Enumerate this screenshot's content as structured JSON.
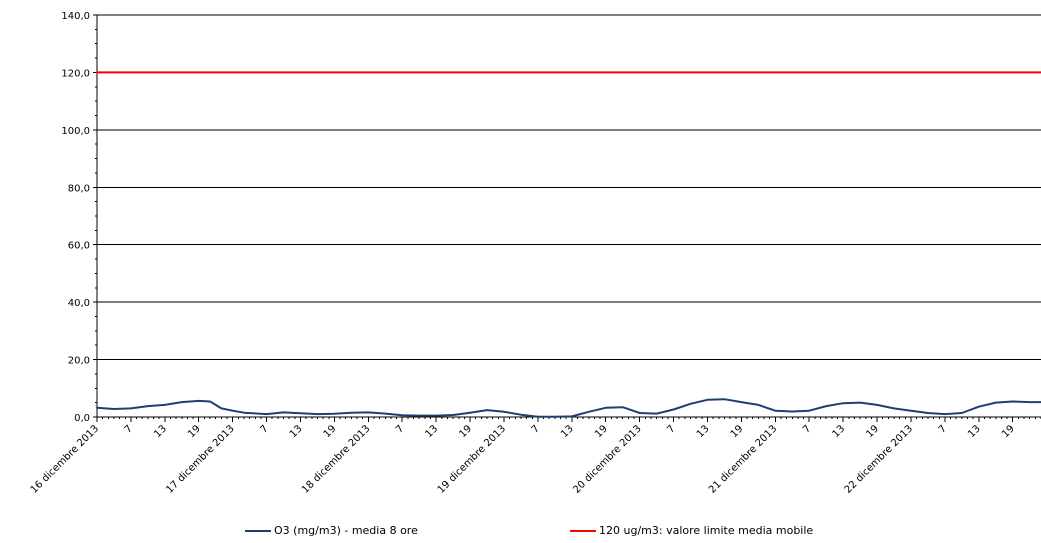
{
  "chart_data": {
    "type": "line",
    "title": "",
    "xlabel": "",
    "ylabel": "",
    "ylim": [
      0,
      140
    ],
    "y_ticks": [
      "0,0",
      "20,0",
      "40,0",
      "60,0",
      "80,0",
      "100,0",
      "120,0",
      "140,0"
    ],
    "x_start_hour": 1,
    "x_end_hour": 168,
    "x_ticks": [
      {
        "hour": 1,
        "label": "16 dicembre 2013"
      },
      {
        "hour": 7,
        "label": "7"
      },
      {
        "hour": 13,
        "label": "13"
      },
      {
        "hour": 19,
        "label": "19"
      },
      {
        "hour": 25,
        "label": "17 dicembre 2013"
      },
      {
        "hour": 31,
        "label": "7"
      },
      {
        "hour": 37,
        "label": "13"
      },
      {
        "hour": 43,
        "label": "19"
      },
      {
        "hour": 49,
        "label": "18 dicembre 2013"
      },
      {
        "hour": 55,
        "label": "7"
      },
      {
        "hour": 61,
        "label": "13"
      },
      {
        "hour": 67,
        "label": "19"
      },
      {
        "hour": 73,
        "label": "19 dicembre 2013"
      },
      {
        "hour": 79,
        "label": "7"
      },
      {
        "hour": 85,
        "label": "13"
      },
      {
        "hour": 91,
        "label": "19"
      },
      {
        "hour": 97,
        "label": "20 dicembre 2013"
      },
      {
        "hour": 103,
        "label": "7"
      },
      {
        "hour": 109,
        "label": "13"
      },
      {
        "hour": 115,
        "label": "19"
      },
      {
        "hour": 121,
        "label": "21 dicembre 2013"
      },
      {
        "hour": 127,
        "label": "7"
      },
      {
        "hour": 133,
        "label": "13"
      },
      {
        "hour": 139,
        "label": "19"
      },
      {
        "hour": 145,
        "label": "22 dicembre 2013"
      },
      {
        "hour": 151,
        "label": "7"
      },
      {
        "hour": 157,
        "label": "13"
      },
      {
        "hour": 163,
        "label": "19"
      }
    ],
    "series": [
      {
        "name": "O3 (mg/m3) - media 8 ore",
        "color": "#1f3f6e",
        "points": [
          [
            1,
            3.2
          ],
          [
            4,
            2.8
          ],
          [
            7,
            3.0
          ],
          [
            10,
            3.8
          ],
          [
            13,
            4.2
          ],
          [
            16,
            5.2
          ],
          [
            19,
            5.6
          ],
          [
            21,
            5.4
          ],
          [
            23,
            3.0
          ],
          [
            25,
            2.2
          ],
          [
            27,
            1.5
          ],
          [
            31,
            1.0
          ],
          [
            34,
            1.6
          ],
          [
            37,
            1.3
          ],
          [
            40,
            1.0
          ],
          [
            43,
            1.1
          ],
          [
            46,
            1.5
          ],
          [
            49,
            1.6
          ],
          [
            52,
            1.2
          ],
          [
            55,
            0.6
          ],
          [
            58,
            0.5
          ],
          [
            61,
            0.5
          ],
          [
            64,
            0.7
          ],
          [
            67,
            1.5
          ],
          [
            70,
            2.4
          ],
          [
            73,
            1.8
          ],
          [
            76,
            0.8
          ],
          [
            79,
            0.1
          ],
          [
            82,
            0.1
          ],
          [
            85,
            0.2
          ],
          [
            88,
            1.8
          ],
          [
            91,
            3.2
          ],
          [
            94,
            3.4
          ],
          [
            97,
            1.4
          ],
          [
            100,
            1.2
          ],
          [
            103,
            2.6
          ],
          [
            106,
            4.6
          ],
          [
            109,
            6.0
          ],
          [
            112,
            6.2
          ],
          [
            115,
            5.2
          ],
          [
            118,
            4.2
          ],
          [
            121,
            2.2
          ],
          [
            124,
            1.9
          ],
          [
            127,
            2.2
          ],
          [
            130,
            3.8
          ],
          [
            133,
            4.8
          ],
          [
            136,
            5.0
          ],
          [
            139,
            4.2
          ],
          [
            142,
            3.0
          ],
          [
            145,
            2.2
          ],
          [
            148,
            1.4
          ],
          [
            151,
            1.0
          ],
          [
            154,
            1.4
          ],
          [
            157,
            3.6
          ],
          [
            160,
            5.0
          ],
          [
            163,
            5.4
          ],
          [
            166,
            5.2
          ],
          [
            168,
            5.2
          ]
        ]
      },
      {
        "name": "120 ug/m3: valore limite media mobile",
        "color": "#ff0000",
        "points": [
          [
            1,
            120
          ],
          [
            168,
            120
          ]
        ]
      }
    ],
    "grid": true,
    "legend_position": "bottom"
  }
}
